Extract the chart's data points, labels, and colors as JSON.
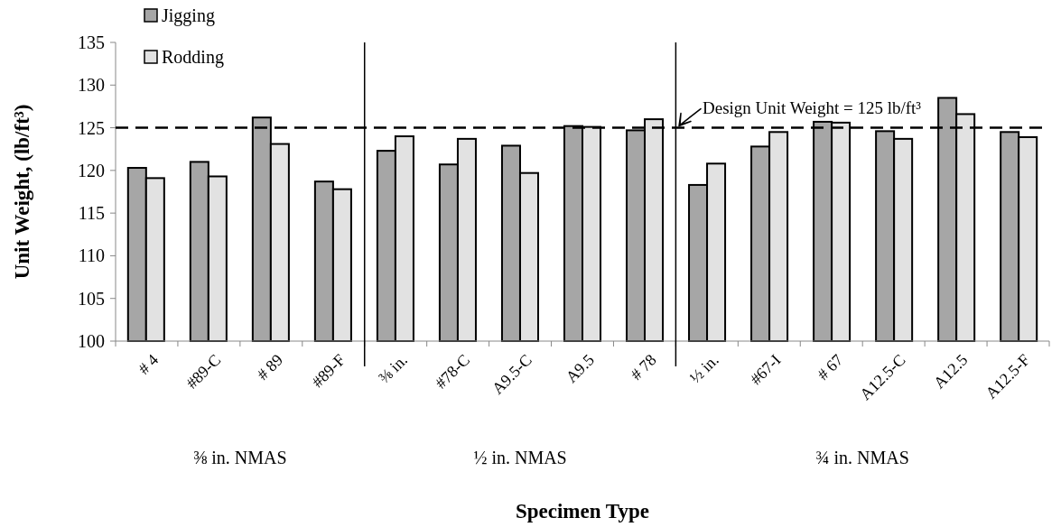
{
  "chart_data": {
    "type": "bar",
    "xlabel": "Specimen Type",
    "ylabel": "Unit Weight, (lb/ft³)",
    "categories": [
      "# 4",
      "#89-C",
      "# 89",
      "#89-F",
      "⅜ in.",
      "#78-C",
      "A9.5-C",
      "A9.5",
      "# 78",
      "½ in.",
      "#67-I",
      "# 67",
      "A12.5-C",
      "A12.5",
      "A12.5-F"
    ],
    "series": [
      {
        "name": "Jigging",
        "color": "#a6a6a6",
        "values": [
          120.3,
          121.0,
          126.2,
          118.7,
          122.3,
          120.7,
          122.9,
          125.2,
          124.7,
          118.3,
          122.8,
          125.7,
          124.6,
          128.5,
          124.5
        ]
      },
      {
        "name": "Rodding",
        "color": "#e2e2e2",
        "values": [
          119.1,
          119.3,
          123.1,
          117.8,
          124.0,
          123.7,
          119.7,
          125.1,
          126.0,
          120.8,
          124.5,
          125.6,
          123.7,
          126.6,
          123.9
        ]
      }
    ],
    "ylim": [
      100,
      135
    ],
    "yticks": [
      100,
      105,
      110,
      115,
      120,
      125,
      130,
      135
    ],
    "ref_lines": [
      {
        "axis": "y",
        "value": 125,
        "label": "Design Unit Weight = 125 lb/ft³",
        "line_style": "dashed",
        "color": "#000000"
      }
    ],
    "annotations": [
      "⅜ in. NMAS",
      "½ in. NMAS",
      "¾ in. NMAS"
    ],
    "legend": "top left",
    "grid": false
  }
}
